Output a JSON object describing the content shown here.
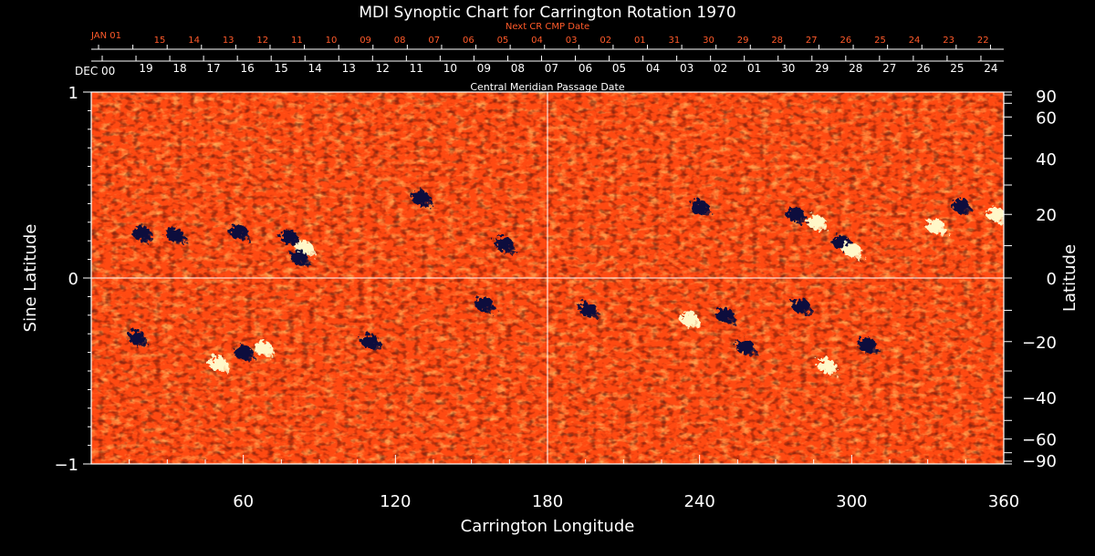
{
  "chart_data": {
    "type": "heatmap",
    "title": "MDI Synoptic Chart for Carrington Rotation 1970",
    "xlabel": "Carrington Longitude",
    "ylabel_left": "Sine Latitude",
    "ylabel_right": "Latitude",
    "xlim": [
      0,
      360
    ],
    "ylim": [
      -1,
      1
    ],
    "x_ticks": [
      "60",
      "120",
      "180",
      "240",
      "300",
      "360"
    ],
    "y_left_ticks": [
      "1",
      "0",
      "−1"
    ],
    "y_right_ticks": [
      "90",
      "60",
      "40",
      "20",
      "0",
      "−20",
      "−40",
      "−60",
      "−90"
    ],
    "top_axis_label": "Central Meridian Passage Date",
    "top_axis_start": "DEC 00",
    "top_axis_dates": [
      "19",
      "18",
      "17",
      "16",
      "15",
      "14",
      "13",
      "12",
      "11",
      "10",
      "09",
      "08",
      "07",
      "06",
      "05",
      "04",
      "03",
      "02",
      "01",
      "30",
      "29",
      "28",
      "27",
      "26",
      "25",
      "24"
    ],
    "next_cr_label": "Next CR CMP Date",
    "next_cr_start": "JAN 01",
    "next_cr_dates": [
      "15",
      "14",
      "13",
      "12",
      "11",
      "10",
      "09",
      "08",
      "07",
      "06",
      "05",
      "04",
      "03",
      "02",
      "01",
      "31",
      "30",
      "29",
      "28",
      "27",
      "26",
      "25",
      "24",
      "23",
      "22"
    ],
    "colors": {
      "background": "#ff4a12",
      "positive": "#fff7c8",
      "negative": "#0c0c3c",
      "text": "#ffffff",
      "next_cr_text": "#ff5a2a"
    },
    "active_regions": [
      {
        "lon": 20,
        "sinlat": 0.24,
        "polarity": "negative"
      },
      {
        "lon": 33,
        "sinlat": 0.23,
        "polarity": "negative"
      },
      {
        "lon": 58,
        "sinlat": 0.25,
        "polarity": "negative"
      },
      {
        "lon": 78,
        "sinlat": 0.22,
        "polarity": "negative"
      },
      {
        "lon": 84,
        "sinlat": 0.16,
        "polarity": "positive"
      },
      {
        "lon": 82,
        "sinlat": 0.11,
        "polarity": "negative"
      },
      {
        "lon": 130,
        "sinlat": 0.43,
        "polarity": "negative"
      },
      {
        "lon": 163,
        "sinlat": 0.18,
        "polarity": "negative"
      },
      {
        "lon": 240,
        "sinlat": 0.38,
        "polarity": "negative"
      },
      {
        "lon": 278,
        "sinlat": 0.34,
        "polarity": "negative"
      },
      {
        "lon": 286,
        "sinlat": 0.3,
        "polarity": "positive"
      },
      {
        "lon": 296,
        "sinlat": 0.19,
        "polarity": "negative"
      },
      {
        "lon": 300,
        "sinlat": 0.15,
        "polarity": "positive"
      },
      {
        "lon": 343,
        "sinlat": 0.39,
        "polarity": "negative"
      },
      {
        "lon": 357,
        "sinlat": 0.34,
        "polarity": "positive"
      },
      {
        "lon": 333,
        "sinlat": 0.28,
        "polarity": "positive"
      },
      {
        "lon": 18,
        "sinlat": -0.32,
        "polarity": "negative"
      },
      {
        "lon": 60,
        "sinlat": -0.4,
        "polarity": "negative"
      },
      {
        "lon": 68,
        "sinlat": -0.38,
        "polarity": "positive"
      },
      {
        "lon": 50,
        "sinlat": -0.46,
        "polarity": "positive"
      },
      {
        "lon": 110,
        "sinlat": -0.34,
        "polarity": "negative"
      },
      {
        "lon": 155,
        "sinlat": -0.14,
        "polarity": "negative"
      },
      {
        "lon": 250,
        "sinlat": -0.2,
        "polarity": "negative"
      },
      {
        "lon": 236,
        "sinlat": -0.22,
        "polarity": "positive"
      },
      {
        "lon": 280,
        "sinlat": -0.15,
        "polarity": "negative"
      },
      {
        "lon": 306,
        "sinlat": -0.36,
        "polarity": "negative"
      },
      {
        "lon": 290,
        "sinlat": -0.47,
        "polarity": "positive"
      },
      {
        "lon": 258,
        "sinlat": -0.37,
        "polarity": "negative"
      },
      {
        "lon": 196,
        "sinlat": -0.17,
        "polarity": "negative"
      }
    ]
  }
}
